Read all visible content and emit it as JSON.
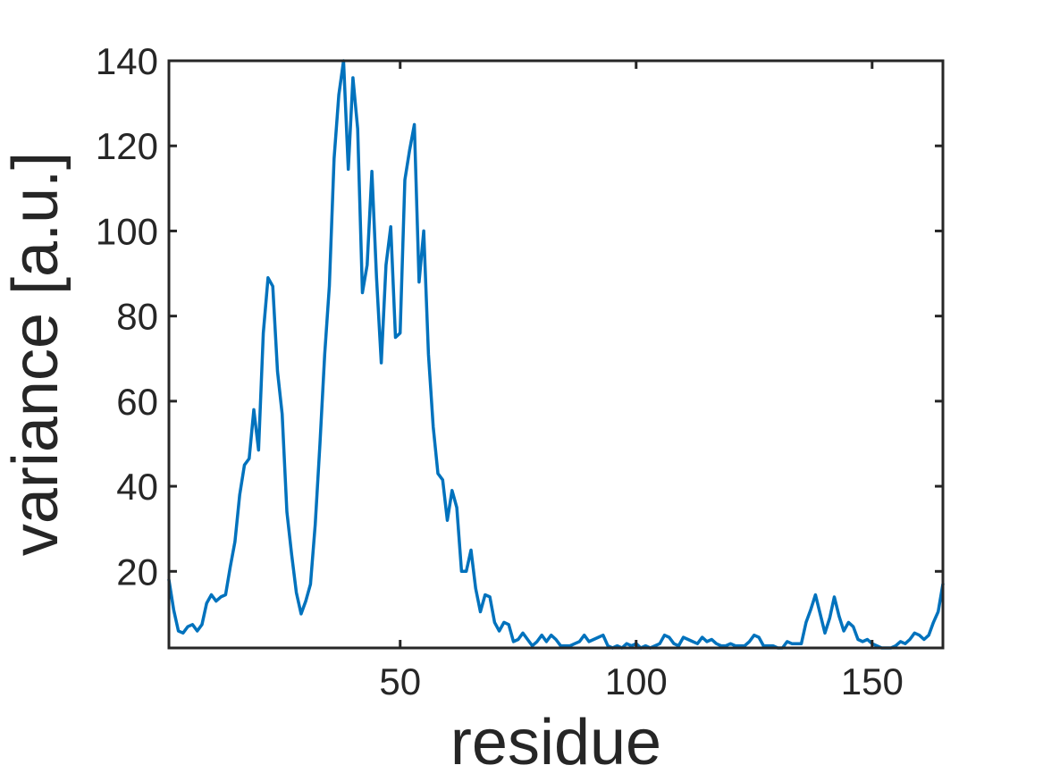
{
  "chart_data": {
    "type": "line",
    "title": "",
    "xlabel": "residue",
    "ylabel": "variance [a.u.]",
    "xlim": [
      1,
      165
    ],
    "ylim": [
      2,
      140
    ],
    "xticks": [
      50,
      100,
      150
    ],
    "yticks": [
      20,
      40,
      60,
      80,
      100,
      120,
      140
    ],
    "grid": false,
    "line_color": "#0072BD",
    "axis_color": "#262626",
    "series": [
      {
        "x": [
          1,
          2,
          3,
          4,
          5,
          6,
          7,
          8,
          9,
          10,
          11,
          12,
          13,
          14,
          15,
          16,
          17,
          18,
          19,
          20,
          21,
          22,
          23,
          24,
          25,
          26,
          27,
          28,
          29,
          30,
          31,
          32,
          33,
          34,
          35,
          36,
          37,
          38,
          39,
          40,
          41,
          42,
          43,
          44,
          45,
          46,
          47,
          48,
          49,
          50,
          51,
          52,
          53,
          54,
          55,
          56,
          57,
          58,
          59,
          60,
          61,
          62,
          63,
          64,
          65,
          66,
          67,
          68,
          69,
          70,
          71,
          72,
          73,
          74,
          75,
          76,
          77,
          78,
          79,
          80,
          81,
          82,
          83,
          84,
          85,
          86,
          87,
          88,
          89,
          90,
          91,
          92,
          93,
          94,
          95,
          96,
          97,
          98,
          99,
          100,
          101,
          102,
          103,
          104,
          105,
          106,
          107,
          108,
          109,
          110,
          111,
          112,
          113,
          114,
          115,
          116,
          117,
          118,
          119,
          120,
          121,
          122,
          123,
          124,
          125,
          126,
          127,
          128,
          129,
          130,
          131,
          132,
          133,
          134,
          135,
          136,
          137,
          138,
          139,
          140,
          141,
          142,
          143,
          144,
          145,
          146,
          147,
          148,
          149,
          150,
          151,
          152,
          153,
          154,
          155,
          156,
          157,
          158,
          159,
          160,
          161,
          162,
          163,
          164,
          165
        ],
        "y": [
          18,
          11,
          6,
          5.5,
          7,
          7.5,
          6,
          7.5,
          12.5,
          14.5,
          13,
          14,
          14.5,
          21,
          27,
          38,
          45,
          46.5,
          58,
          48.5,
          76,
          89,
          87,
          67,
          57,
          34,
          24,
          15,
          10,
          13,
          17,
          31,
          50,
          71,
          87,
          117,
          132,
          140,
          114.5,
          136,
          124,
          85.5,
          92,
          114,
          89,
          69,
          92,
          101,
          75,
          76,
          112,
          119,
          125,
          88,
          100,
          71,
          54,
          43,
          41.5,
          32,
          39,
          35,
          20,
          20,
          25,
          16,
          10.5,
          14.5,
          14,
          8,
          6,
          8,
          7.5,
          3.5,
          4,
          5.5,
          4,
          2.5,
          3.5,
          5,
          3.5,
          5,
          4,
          2.5,
          2.5,
          2.5,
          3,
          3.5,
          5,
          3.5,
          4,
          4.5,
          5,
          2.5,
          2,
          2.5,
          2,
          3,
          2.5,
          3,
          2,
          2.5,
          2,
          2.5,
          3,
          5,
          4.5,
          3,
          2.5,
          4.5,
          4,
          3.5,
          3,
          4.5,
          3.5,
          4,
          3,
          2.5,
          2.5,
          3,
          2.5,
          2.5,
          2.5,
          3.5,
          5,
          4.5,
          2.5,
          2.5,
          2.5,
          2,
          2,
          3.5,
          3,
          3,
          3,
          8,
          11,
          14.5,
          10,
          5.5,
          9,
          14,
          9.5,
          6,
          8,
          7,
          4,
          3.5,
          4,
          3,
          2.5,
          2,
          2,
          2,
          2.5,
          3.5,
          3,
          4,
          5.5,
          5,
          4,
          5,
          8,
          10.5,
          17
        ]
      }
    ]
  }
}
